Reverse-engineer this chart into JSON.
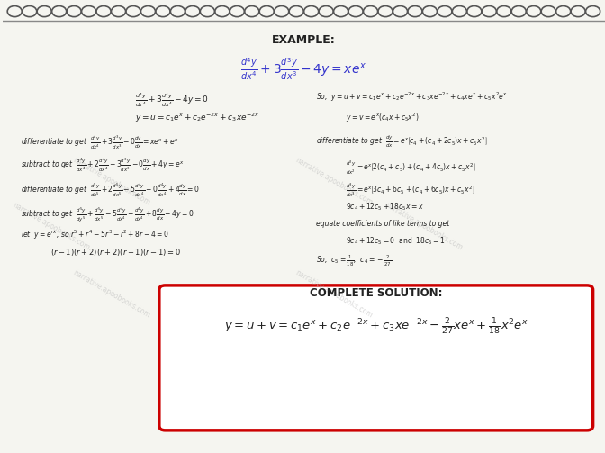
{
  "background_color": "#e8e8e8",
  "paper_color": "#f5f5f0",
  "title": "EXAMPLE:",
  "main_eq": "$\\frac{d^4y}{dx^4} + 3\\frac{d^3y}{dx^3} - 4y = xe^x$",
  "complete_solution_label": "COMPLETE SOLUTION:",
  "complete_solution_eq": "$y = u + v = c_1e^x + c_2e^{-2x} + c_3xe^{-2x} - \\frac{2}{27}xe^x + \\frac{1}{18}x^2e^x$",
  "spiral_color": "#555555",
  "watermark_color": "#aaaaaa",
  "box_color": "#cc0000",
  "text_color": "#222222",
  "blue_color": "#3333cc",
  "left_lines": [
    "$\\frac{d^4y}{dx^4} + 3\\frac{d^4y}{dx^4} - 4y = 0$",
    "$y = u = c_1e^x + c_2e^{-2x} + c_3xe^{-2x}$",
    "differentiate to get  $\\frac{d^4y}{dx^4} + 3\\frac{d^3y}{dx^3} - 0\\frac{dy}{dx} = xe^x + e^x$",
    "subtract to get  $\\frac{d^4y}{dx^4} + 2\\frac{d^4y}{dx^4} - 3\\frac{d^3y}{dx^3} - 0\\frac{dy}{dx} + 4y = e^x$",
    "differentiate to get  $\\frac{d^5y}{dx^5} + 2\\frac{d^5y}{dx^5} - 5\\frac{d^4y}{dx^4} - 0\\frac{d^4y}{dx^4} + 4\\frac{dy}{dx} = 0$",
    "subtract to get  $\\frac{d^5y}{dy^5} + \\frac{d^5y}{dx^5} - 5\\frac{d^4y}{dx^4} - \\frac{d^4y}{dx^4} + 8\\frac{dy}{dx} - 4y = 0$",
    "let  $y = e^{rx}$, so $r^5 + r^4 - 5r^3 - r^2 + 8r - 4 = 0$",
    "$(r-1)(r+2)(r+2)(r-1)(r-1) = 0$"
  ],
  "right_lines": [
    "So,  $y = u + v = c_1e^x + c_2e^{-2x} + c_3xe^{-2x} + c_4xe^x + c_5x^2e^x$",
    "$y = v = e^x(c_4x + c_5x^2)$",
    "differentiate to get  $\\frac{dy}{dx} = e^x\\left[c_4 + (c_4 + 2c_5)x + c_5x^2\\right]$",
    "$\\frac{d^2y}{dx^2} = e^x\\left[2(c_4 + c_5) + (c_4 + 4c_5)x + c_5x^2\\right]$",
    "$\\frac{d^3y}{dx^3} = e^x\\left[3c_4 + 6c_5 + (c_4 + 6c_5)x + c_5x^2\\right]$",
    "$9c_4 + 12c_5 + 18c_5 x = x$",
    "equate coefficients of like terms to get",
    "$9c_4 + 12c_5 = 0$  and  $18c_5 = 1$",
    "So,  $c_5 = \\frac{1}{18}$,  $c_4 = -\\frac{2}{27}$"
  ]
}
